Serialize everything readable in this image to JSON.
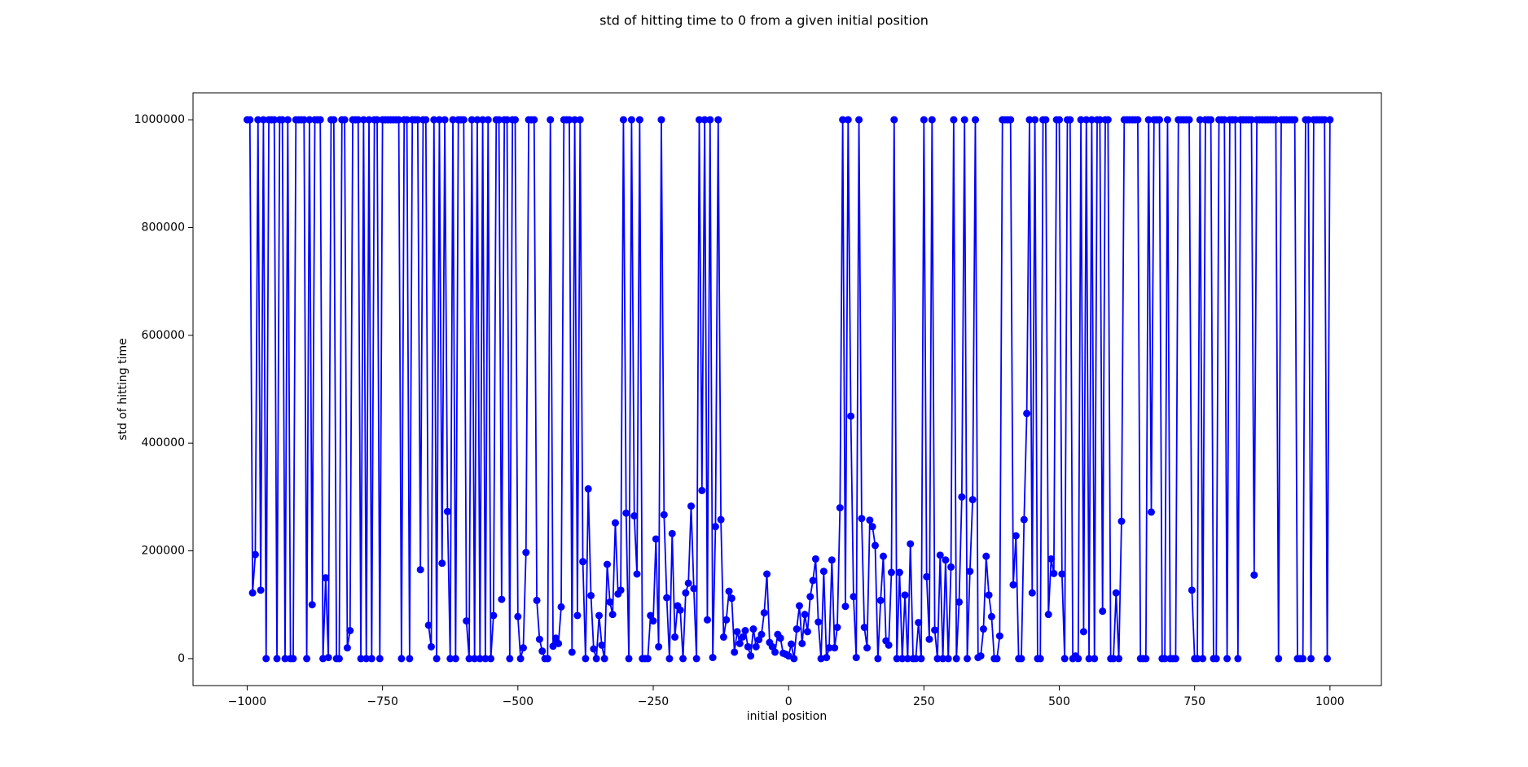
{
  "chart_data": {
    "type": "line",
    "title": "std of hitting time to 0 from a given initial position",
    "xlabel": "initial position",
    "ylabel": "std of hitting time",
    "color": "#0000ff",
    "marker": true,
    "grid": false,
    "xlim": [
      -1100,
      1095
    ],
    "ylim": [
      -50000,
      1050000
    ],
    "xticks": [
      {
        "value": -1000,
        "label": "−1000"
      },
      {
        "value": -750,
        "label": "−750"
      },
      {
        "value": -500,
        "label": "−500"
      },
      {
        "value": -250,
        "label": "−250"
      },
      0,
      250,
      500,
      750,
      1000
    ],
    "yticks": [
      0,
      200000,
      400000,
      600000,
      800000,
      1000000
    ],
    "x": [
      -1000,
      -995,
      -990,
      -985,
      -980,
      -975,
      -970,
      -965,
      -960,
      -955,
      -950,
      -945,
      -940,
      -935,
      -930,
      -925,
      -920,
      -915,
      -910,
      -905,
      -900,
      -895,
      -890,
      -885,
      -880,
      -875,
      -870,
      -865,
      -860,
      -855,
      -850,
      -845,
      -840,
      -835,
      -830,
      -825,
      -820,
      -815,
      -810,
      -805,
      -800,
      -795,
      -790,
      -785,
      -780,
      -775,
      -770,
      -765,
      -760,
      -755,
      -750,
      -745,
      -740,
      -735,
      -730,
      -725,
      -720,
      -715,
      -710,
      -705,
      -700,
      -695,
      -690,
      -685,
      -680,
      -675,
      -670,
      -665,
      -660,
      -655,
      -650,
      -645,
      -640,
      -635,
      -630,
      -625,
      -620,
      -615,
      -610,
      -605,
      -600,
      -595,
      -590,
      -585,
      -580,
      -575,
      -570,
      -565,
      -560,
      -555,
      -550,
      -545,
      -540,
      -535,
      -530,
      -525,
      -520,
      -515,
      -510,
      -505,
      -500,
      -495,
      -490,
      -485,
      -480,
      -475,
      -470,
      -465,
      -460,
      -455,
      -450,
      -445,
      -440,
      -435,
      -430,
      -425,
      -420,
      -415,
      -410,
      -405,
      -400,
      -395,
      -390,
      -385,
      -380,
      -375,
      -370,
      -365,
      -360,
      -355,
      -350,
      -345,
      -340,
      -335,
      -330,
      -325,
      -320,
      -315,
      -310,
      -305,
      -300,
      -295,
      -290,
      -285,
      -280,
      -275,
      -270,
      -265,
      -260,
      -255,
      -250,
      -245,
      -240,
      -235,
      -230,
      -225,
      -220,
      -215,
      -210,
      -205,
      -200,
      -195,
      -190,
      -185,
      -180,
      -175,
      -170,
      -165,
      -160,
      -155,
      -150,
      -145,
      -140,
      -135,
      -130,
      -125,
      -120,
      -115,
      -110,
      -105,
      -100,
      -95,
      -90,
      -85,
      -80,
      -75,
      -70,
      -65,
      -60,
      -55,
      -50,
      -45,
      -40,
      -35,
      -30,
      -25,
      -20,
      -15,
      -10,
      -5,
      0,
      5,
      10,
      15,
      20,
      25,
      30,
      35,
      40,
      45,
      50,
      55,
      60,
      65,
      70,
      75,
      80,
      85,
      90,
      95,
      100,
      105,
      110,
      115,
      120,
      125,
      130,
      135,
      140,
      145,
      150,
      155,
      160,
      165,
      170,
      175,
      180,
      185,
      190,
      195,
      200,
      205,
      210,
      215,
      220,
      225,
      230,
      235,
      240,
      245,
      250,
      255,
      260,
      265,
      270,
      275,
      280,
      285,
      290,
      295,
      300,
      305,
      310,
      315,
      320,
      325,
      330,
      335,
      340,
      345,
      350,
      355,
      360,
      365,
      370,
      375,
      380,
      385,
      390,
      395,
      400,
      405,
      410,
      415,
      420,
      425,
      430,
      435,
      440,
      445,
      450,
      455,
      460,
      465,
      470,
      475,
      480,
      485,
      490,
      495,
      500,
      505,
      510,
      515,
      520,
      525,
      530,
      535,
      540,
      545,
      550,
      555,
      560,
      565,
      570,
      575,
      580,
      585,
      590,
      595,
      600,
      605,
      610,
      615,
      620,
      625,
      630,
      635,
      640,
      645,
      650,
      655,
      660,
      665,
      670,
      675,
      680,
      685,
      690,
      695,
      700,
      705,
      710,
      715,
      720,
      725,
      730,
      735,
      740,
      745,
      750,
      755,
      760,
      765,
      770,
      775,
      780,
      785,
      790,
      795,
      800,
      805,
      810,
      815,
      820,
      825,
      830,
      835,
      840,
      845,
      850,
      855,
      860,
      865,
      870,
      875,
      880,
      885,
      890,
      895,
      900,
      905,
      910,
      915,
      920,
      925,
      930,
      935,
      940,
      945,
      950,
      955,
      960,
      965,
      970,
      975,
      980,
      985,
      990,
      995,
      1000
    ],
    "values": [
      1000000,
      1000000,
      122000,
      193000,
      1000000,
      127000,
      1000000,
      0,
      1000000,
      1000000,
      1000000,
      0,
      1000000,
      1000000,
      0,
      1000000,
      0,
      0,
      1000000,
      1000000,
      1000000,
      1000000,
      0,
      1000000,
      100000,
      1000000,
      1000000,
      1000000,
      0,
      150000,
      2000,
      1000000,
      1000000,
      0,
      0,
      1000000,
      1000000,
      20000,
      52000,
      1000000,
      1000000,
      1000000,
      0,
      1000000,
      0,
      1000000,
      0,
      1000000,
      1000000,
      0,
      1000000,
      1000000,
      1000000,
      1000000,
      1000000,
      1000000,
      1000000,
      0,
      1000000,
      1000000,
      0,
      1000000,
      1000000,
      1000000,
      165000,
      1000000,
      1000000,
      62000,
      22000,
      1000000,
      0,
      1000000,
      177000,
      1000000,
      273000,
      0,
      1000000,
      0,
      1000000,
      1000000,
      1000000,
      70000,
      0,
      1000000,
      0,
      1000000,
      0,
      1000000,
      0,
      1000000,
      0,
      80000,
      1000000,
      1000000,
      110000,
      1000000,
      1000000,
      0,
      1000000,
      1000000,
      78000,
      0,
      20000,
      197000,
      1000000,
      1000000,
      1000000,
      108000,
      36000,
      14000,
      0,
      0,
      1000000,
      23000,
      38000,
      28000,
      96000,
      1000000,
      1000000,
      1000000,
      12000,
      1000000,
      80000,
      1000000,
      180000,
      0,
      315000,
      117000,
      18000,
      0,
      80000,
      25000,
      0,
      175000,
      105000,
      82000,
      252000,
      120000,
      127000,
      1000000,
      270000,
      0,
      1000000,
      265000,
      157000,
      1000000,
      0,
      0,
      0,
      80000,
      70000,
      222000,
      22000,
      1000000,
      267000,
      113000,
      0,
      232000,
      40000,
      98000,
      90000,
      0,
      122000,
      140000,
      283000,
      130000,
      0,
      1000000,
      312000,
      1000000,
      72000,
      1000000,
      2000,
      245000,
      1000000,
      258000,
      40000,
      72000,
      125000,
      112000,
      12000,
      50000,
      28000,
      40000,
      52000,
      22000,
      5000,
      55000,
      22000,
      35000,
      45000,
      85000,
      157000,
      30000,
      22000,
      12000,
      45000,
      38000,
      10000,
      8000,
      5000,
      27000,
      0,
      55000,
      98000,
      28000,
      82000,
      50000,
      115000,
      145000,
      185000,
      68000,
      0,
      162000,
      2000,
      20000,
      183000,
      20000,
      58000,
      280000,
      1000000,
      97000,
      1000000,
      450000,
      115000,
      2000,
      1000000,
      260000,
      58000,
      20000,
      257000,
      245000,
      210000,
      0,
      108000,
      190000,
      33000,
      25000,
      160000,
      1000000,
      0,
      160000,
      0,
      118000,
      0,
      213000,
      0,
      0,
      67000,
      0,
      1000000,
      152000,
      36000,
      1000000,
      53000,
      0,
      192000,
      0,
      183000,
      0,
      170000,
      1000000,
      0,
      105000,
      300000,
      1000000,
      0,
      162000,
      295000,
      1000000,
      2000,
      5000,
      55000,
      190000,
      118000,
      78000,
      0,
      0,
      42000,
      1000000,
      1000000,
      1000000,
      1000000,
      137000,
      228000,
      0,
      0,
      258000,
      455000,
      1000000,
      122000,
      1000000,
      0,
      0,
      1000000,
      1000000,
      82000,
      185000,
      158000,
      1000000,
      1000000,
      157000,
      0,
      1000000,
      1000000,
      0,
      5000,
      0,
      1000000,
      50000,
      1000000,
      0,
      1000000,
      0,
      1000000,
      1000000,
      88000,
      1000000,
      1000000,
      0,
      0,
      122000,
      0,
      255000,
      1000000,
      1000000,
      1000000,
      1000000,
      1000000,
      1000000,
      0,
      0,
      0,
      1000000,
      272000,
      1000000,
      1000000,
      1000000,
      0,
      0,
      1000000,
      0,
      0,
      0,
      1000000,
      1000000,
      1000000,
      1000000,
      1000000,
      127000,
      0,
      0,
      1000000,
      0,
      1000000,
      1000000,
      1000000,
      0,
      0,
      1000000,
      1000000,
      1000000,
      0,
      1000000,
      1000000,
      1000000,
      0,
      1000000,
      1000000,
      1000000,
      1000000,
      1000000,
      155000,
      1000000,
      1000000,
      1000000,
      1000000,
      1000000,
      1000000,
      1000000,
      1000000,
      0,
      1000000,
      1000000,
      1000000,
      1000000,
      1000000,
      1000000,
      0,
      0,
      0,
      1000000,
      1000000,
      0,
      1000000,
      1000000,
      1000000,
      1000000,
      1000000,
      0,
      1000000
    ]
  }
}
